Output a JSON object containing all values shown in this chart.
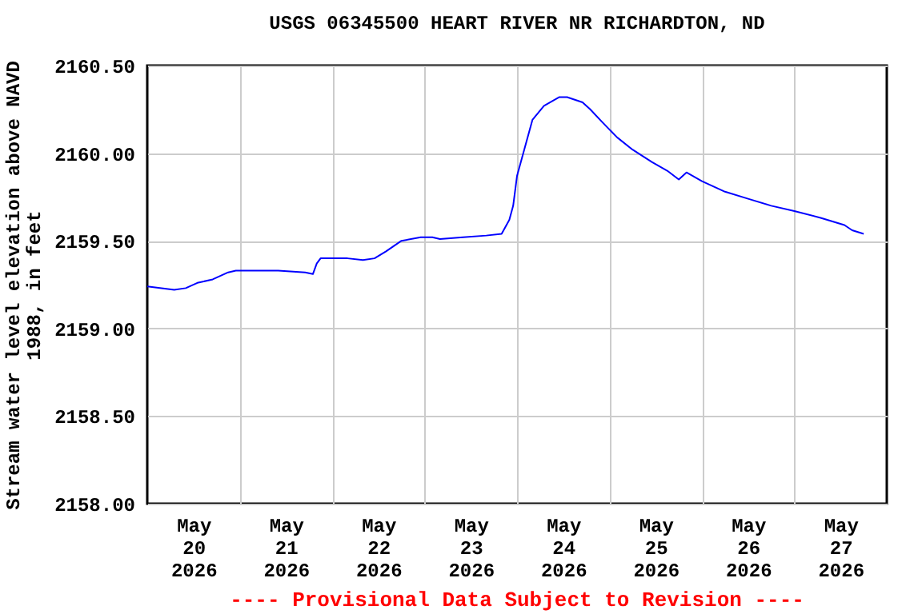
{
  "chart_data": {
    "type": "line",
    "title": "USGS 06345500 HEART RIVER NR RICHARDTON, ND",
    "ylabel": "Stream water level elevation above NAVD\n1988, in feet",
    "annotations": [
      "---- Provisional Data Subject to Revision ----"
    ],
    "xlim": [
      "2026-05-20T00:00",
      "2026-05-28T00:00"
    ],
    "xticks": [
      {
        "value": "2026-05-20T12:00",
        "label": "May\n20\n2026"
      },
      {
        "value": "2026-05-21T00:00",
        "label": null
      },
      {
        "value": "2026-05-21T12:00",
        "label": "May\n21\n2026"
      },
      {
        "value": "2026-05-22T00:00",
        "label": null
      },
      {
        "value": "2026-05-22T12:00",
        "label": "May\n22\n2026"
      },
      {
        "value": "2026-05-23T00:00",
        "label": null
      },
      {
        "value": "2026-05-23T12:00",
        "label": "May\n23\n2026"
      },
      {
        "value": "2026-05-24T00:00",
        "label": null
      },
      {
        "value": "2026-05-24T12:00",
        "label": "May\n24\n2026"
      },
      {
        "value": "2026-05-25T00:00",
        "label": null
      },
      {
        "value": "2026-05-25T12:00",
        "label": "May\n25\n2026"
      },
      {
        "value": "2026-05-26T00:00",
        "label": null
      },
      {
        "value": "2026-05-26T12:00",
        "label": "May\n26\n2026"
      },
      {
        "value": "2026-05-27T00:00",
        "label": null
      },
      {
        "value": "2026-05-27T12:00",
        "label": "May\n27\n2026"
      }
    ],
    "ylim": [
      2158.0,
      2160.5
    ],
    "yticks": [
      {
        "value": 2158.0,
        "label": "2158.00"
      },
      {
        "value": 2158.5,
        "label": "2158.50"
      },
      {
        "value": 2159.0,
        "label": "2159.00"
      },
      {
        "value": 2159.5,
        "label": "2159.50"
      },
      {
        "value": 2160.0,
        "label": "2160.00"
      },
      {
        "value": 2160.5,
        "label": "2160.50"
      }
    ],
    "grid": true,
    "x": [
      "2026-05-20T00:00",
      "2026-05-20T07:00",
      "2026-05-20T10:00",
      "2026-05-20T13:00",
      "2026-05-20T17:00",
      "2026-05-20T21:00",
      "2026-05-20T23:00",
      "2026-05-21T10:00",
      "2026-05-21T17:00",
      "2026-05-21T19:00",
      "2026-05-21T20:00",
      "2026-05-21T21:00",
      "2026-05-22T04:00",
      "2026-05-22T08:00",
      "2026-05-22T11:00",
      "2026-05-22T14:00",
      "2026-05-22T18:00",
      "2026-05-22T23:00",
      "2026-05-23T02:00",
      "2026-05-23T04:00",
      "2026-05-23T10:00",
      "2026-05-23T16:00",
      "2026-05-23T20:00",
      "2026-05-23T22:00",
      "2026-05-23T23:00",
      "2026-05-24T00:00",
      "2026-05-24T02:00",
      "2026-05-24T04:00",
      "2026-05-24T07:00",
      "2026-05-24T11:00",
      "2026-05-24T13:00",
      "2026-05-24T17:00",
      "2026-05-24T19:00",
      "2026-05-24T22:00",
      "2026-05-25T02:00",
      "2026-05-25T06:00",
      "2026-05-25T11:00",
      "2026-05-25T15:00",
      "2026-05-25T18:00",
      "2026-05-25T20:00",
      "2026-05-26T00:00",
      "2026-05-26T06:00",
      "2026-05-26T12:00",
      "2026-05-26T18:00",
      "2026-05-27T00:00",
      "2026-05-27T07:00",
      "2026-05-27T13:00",
      "2026-05-27T15:00",
      "2026-05-27T18:00"
    ],
    "series": [
      {
        "color": "#0000ff",
        "values": [
          2159.24,
          2159.22,
          2159.23,
          2159.26,
          2159.28,
          2159.32,
          2159.33,
          2159.33,
          2159.32,
          2159.31,
          2159.37,
          2159.4,
          2159.4,
          2159.39,
          2159.4,
          2159.44,
          2159.5,
          2159.52,
          2159.52,
          2159.51,
          2159.52,
          2159.53,
          2159.54,
          2159.62,
          2159.7,
          2159.87,
          2160.03,
          2160.19,
          2160.27,
          2160.32,
          2160.32,
          2160.29,
          2160.25,
          2160.18,
          2160.09,
          2160.02,
          2159.95,
          2159.9,
          2159.85,
          2159.89,
          2159.84,
          2159.78,
          2159.74,
          2159.7,
          2159.67,
          2159.63,
          2159.59,
          2159.56,
          2159.54
        ]
      }
    ]
  }
}
